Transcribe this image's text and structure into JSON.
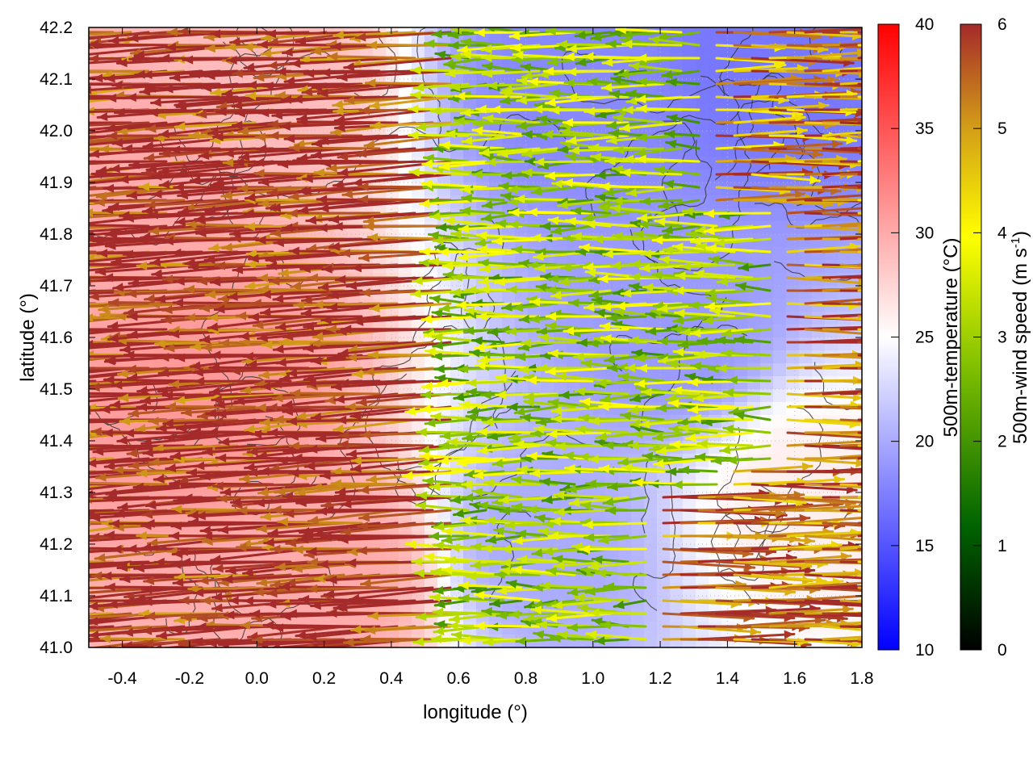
{
  "chart_data": {
    "type": "vector-field-on-heatmap",
    "xlabel": "longitude (°)",
    "ylabel": "latitude (°)",
    "xlim": [
      -0.5,
      1.8
    ],
    "ylim": [
      41.0,
      42.2
    ],
    "xticks": [
      -0.4,
      -0.2,
      0.0,
      0.2,
      0.4,
      0.6,
      0.8,
      1.0,
      1.2,
      1.4,
      1.6,
      1.8
    ],
    "xtick_labels": [
      "-0.4",
      "-0.2",
      "0.0",
      "0.2",
      "0.4",
      "0.6",
      "0.8",
      "1.0",
      "1.2",
      "1.4",
      "1.6",
      "1.8"
    ],
    "yticks": [
      41.0,
      41.1,
      41.2,
      41.3,
      41.4,
      41.5,
      41.6,
      41.7,
      41.8,
      41.9,
      42.0,
      42.1,
      42.2
    ],
    "ytick_labels": [
      "41.0",
      "41.1",
      "41.2",
      "41.3",
      "41.4",
      "41.5",
      "41.6",
      "41.7",
      "41.8",
      "41.9",
      "42.0",
      "42.1",
      "42.2"
    ],
    "grid": true,
    "temperature_colorbar": {
      "label": "500m-temperature (°C)",
      "range": [
        10,
        40
      ],
      "ticks": [
        10,
        15,
        20,
        25,
        30,
        35,
        40
      ],
      "tick_labels": [
        "10",
        "15",
        "20",
        "25",
        "30",
        "35",
        "40"
      ],
      "colors": [
        "#0000ff",
        "#ffffff",
        "#ff0000"
      ]
    },
    "wind_colorbar": {
      "label": "500m-wind speed (m s",
      "label_sup": "-1",
      "label_tail": ")",
      "range": [
        0,
        6
      ],
      "ticks": [
        0,
        1,
        2,
        3,
        4,
        5,
        6
      ],
      "tick_labels": [
        "0",
        "1",
        "2",
        "3",
        "4",
        "5",
        "6"
      ],
      "colors": [
        "#000000",
        "#006400",
        "#7fbf00",
        "#ffff00",
        "#d4a017",
        "#a52a2a"
      ]
    },
    "temperature_regions": [
      {
        "lon": -0.35,
        "lat": 41.9,
        "temp": 30
      },
      {
        "lon": -0.1,
        "lat": 41.5,
        "temp": 31
      },
      {
        "lon": 0.25,
        "lat": 41.15,
        "temp": 30
      },
      {
        "lon": 0.0,
        "lat": 42.1,
        "temp": 29
      },
      {
        "lon": 0.95,
        "lat": 42.1,
        "temp": 18
      },
      {
        "lon": 1.25,
        "lat": 41.6,
        "temp": 19
      },
      {
        "lon": 1.5,
        "lat": 42.15,
        "temp": 17
      },
      {
        "lon": 0.85,
        "lat": 41.2,
        "temp": 20
      },
      {
        "lon": 1.6,
        "lat": 41.3,
        "temp": 26
      }
    ],
    "wind_regime": [
      {
        "region": "west",
        "lon_range": [
          -0.5,
          0.6
        ],
        "u_ms": -5.8,
        "v_ms": -0.3,
        "speed_ms": 6
      },
      {
        "region": "central",
        "lon_range": [
          0.6,
          1.4
        ],
        "u_ms": -2.5,
        "v_ms": 0.0,
        "speed_ms": 3
      },
      {
        "region": "east-south",
        "lon_range": [
          1.4,
          1.8
        ],
        "u_ms": 5.5,
        "v_ms": 0.0,
        "speed_ms": 5.5
      }
    ]
  }
}
